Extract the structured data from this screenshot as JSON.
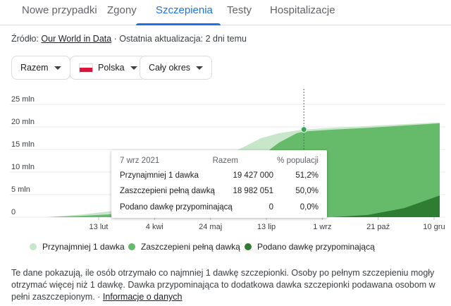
{
  "tabs": [
    {
      "label": "Nowe przypadki",
      "active": false
    },
    {
      "label": "Zgony",
      "active": false
    },
    {
      "label": "Szczepienia",
      "active": true
    },
    {
      "label": "Testy",
      "active": false
    },
    {
      "label": "Hospitalizacje",
      "active": false
    }
  ],
  "source": {
    "prefix": "Źródło: ",
    "link": "Our World in Data",
    "suffix": " · Ostatnia aktualizacja: 2 dni temu"
  },
  "filters": {
    "scope": "Razem",
    "country": "Polska",
    "period": "Cały okres"
  },
  "tooltip": {
    "date": "7 wrz 2021",
    "col_total": "Razem",
    "col_percent": "% populacji",
    "rows": [
      {
        "label": "Przynajmniej 1 dawka",
        "total": "19 427 000",
        "percent": "51,2%"
      },
      {
        "label": "Zaszczepieni pełną dawką",
        "total": "18 982 051",
        "percent": "50,0%"
      },
      {
        "label": "Podano dawkę przypominającą",
        "total": "0",
        "percent": "0,0%"
      }
    ]
  },
  "legend": {
    "items": [
      {
        "label": "Przynajmniej 1 dawka",
        "color": "#c8e6c9"
      },
      {
        "label": "Zaszczepieni pełną dawką",
        "color": "#66bb6a"
      },
      {
        "label": "Podano dawkę przypominającą",
        "color": "#2e7d32"
      }
    ]
  },
  "note": {
    "text": "Te dane pokazują, ile osób otrzymało co najmniej 1 dawkę szczepionki. Osoby po pełnym szczepieniu mogły otrzymać więcej niż 1 dawkę. Dawka przypominająca to dodatkowa dawka szczepionki podawana osobom w pełni zaszczepionym.",
    "separator": " · ",
    "link": "Informacje o danych"
  },
  "colors": {
    "accent": "#1a73e8",
    "at_least_one": "#c8e6c9",
    "fully": "#66bb6a",
    "booster": "#2e7d32",
    "tooltip_dot": "#34a853"
  },
  "chart_data": {
    "type": "area",
    "y_unit": "mln",
    "ylim": [
      0,
      25
    ],
    "yticks": [
      "25 mln",
      "20 mln",
      "15 mln",
      "10 mln",
      "5 mln",
      "0"
    ],
    "xtick_labels": [
      "13 lut",
      "4 kwi",
      "24 maj",
      "13 lip",
      "1 wrz",
      "21 paź",
      "10 gru"
    ],
    "x_months": [
      1.0,
      2.0,
      3.0,
      4.0,
      5.0,
      6.0,
      7.0,
      7.5,
      8.0,
      8.2,
      9.0,
      10.0,
      11.0,
      12.0
    ],
    "series": [
      {
        "name": "Przynajmniej 1 dawka",
        "values": [
          0.0,
          0.6,
          1.5,
          3.5,
          8.0,
          13.5,
          17.5,
          18.6,
          19.2,
          19.43,
          19.8,
          20.2,
          20.6,
          21.0
        ]
      },
      {
        "name": "Zaszczepieni pełną dawką",
        "values": [
          0.0,
          0.3,
          0.7,
          2.0,
          4.0,
          8.0,
          13.5,
          16.5,
          18.6,
          18.98,
          19.4,
          19.8,
          20.3,
          20.8
        ]
      },
      {
        "name": "Podano dawkę przypominającą",
        "values": [
          0,
          0,
          0,
          0,
          0,
          0,
          0,
          0,
          0,
          0,
          0,
          0.5,
          2.0,
          4.8
        ]
      }
    ],
    "highlight": {
      "date": "7 wrz 2021",
      "x_month": 8.2,
      "value": 19.427
    }
  }
}
